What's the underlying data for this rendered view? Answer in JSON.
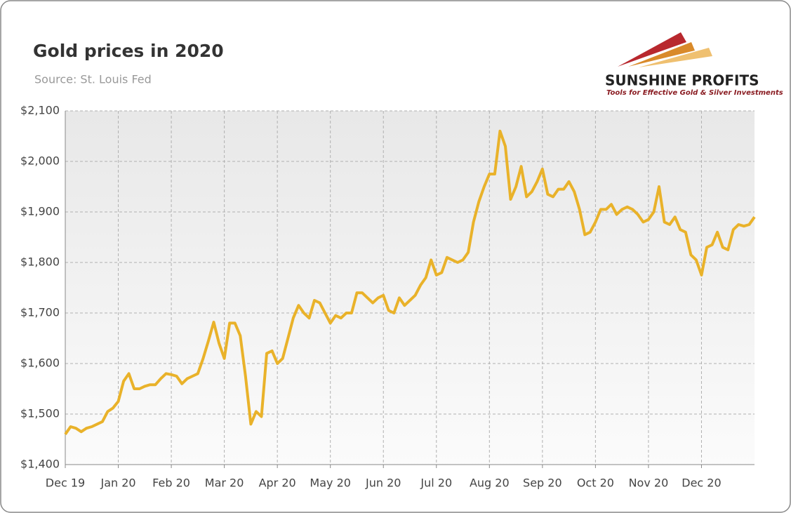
{
  "logo": {
    "name": "SUNSHINE PROFITS",
    "tagline": "Tools for Effective Gold & Silver Investments"
  },
  "chart_data": {
    "type": "line",
    "title": "Gold prices in 2020",
    "subtitle": "Source: St. Louis Fed",
    "categories": [
      "Dec 19",
      null,
      null,
      null,
      null,
      null,
      null,
      null,
      null,
      null,
      "Jan 20",
      null,
      null,
      null,
      null,
      null,
      null,
      null,
      null,
      null,
      "Feb 20",
      null,
      null,
      null,
      null,
      null,
      null,
      null,
      null,
      null,
      "Mar 20",
      null,
      null,
      null,
      null,
      null,
      null,
      null,
      null,
      null,
      "Apr 20",
      null,
      null,
      null,
      null,
      null,
      null,
      null,
      null,
      null,
      "May 20",
      null,
      null,
      null,
      null,
      null,
      null,
      null,
      null,
      null,
      "Jun 20",
      null,
      null,
      null,
      null,
      null,
      null,
      null,
      null,
      null,
      "Jul 20",
      null,
      null,
      null,
      null,
      null,
      null,
      null,
      null,
      null,
      "Aug 20",
      null,
      null,
      null,
      null,
      null,
      null,
      null,
      null,
      null,
      "Sep 20",
      null,
      null,
      null,
      null,
      null,
      null,
      null,
      null,
      null,
      "Oct 20",
      null,
      null,
      null,
      null,
      null,
      null,
      null,
      null,
      null,
      "Nov 20",
      null,
      null,
      null,
      null,
      null,
      null,
      null,
      null,
      null,
      "Dec 20",
      null,
      null,
      null,
      null,
      null,
      null,
      null,
      null,
      null,
      null
    ],
    "values": [
      1460,
      1475,
      1472,
      1465,
      1472,
      1475,
      1480,
      1485,
      1505,
      1512,
      1525,
      1565,
      1580,
      1550,
      1550,
      1555,
      1558,
      1558,
      1570,
      1580,
      1578,
      1575,
      1560,
      1570,
      1575,
      1580,
      1610,
      1645,
      1682,
      1640,
      1610,
      1680,
      1680,
      1655,
      1575,
      1480,
      1505,
      1495,
      1620,
      1625,
      1600,
      1610,
      1650,
      1690,
      1715,
      1700,
      1690,
      1725,
      1720,
      1700,
      1680,
      1695,
      1690,
      1700,
      1700,
      1740,
      1740,
      1730,
      1720,
      1730,
      1735,
      1705,
      1700,
      1730,
      1715,
      1725,
      1735,
      1755,
      1770,
      1805,
      1775,
      1780,
      1810,
      1805,
      1800,
      1805,
      1820,
      1880,
      1920,
      1950,
      1975,
      1975,
      2060,
      2030,
      1925,
      1950,
      1990,
      1930,
      1940,
      1960,
      1985,
      1935,
      1930,
      1945,
      1945,
      1960,
      1940,
      1905,
      1855,
      1860,
      1880,
      1905,
      1905,
      1915,
      1895,
      1905,
      1910,
      1905,
      1895,
      1880,
      1885,
      1900,
      1950,
      1880,
      1875,
      1890,
      1865,
      1860,
      1815,
      1805,
      1775,
      1830,
      1835,
      1860,
      1830,
      1825,
      1865,
      1875,
      1872,
      1875,
      1890
    ],
    "color": "#e9b22a",
    "ylim": [
      1400,
      2100
    ],
    "yticks": [
      {
        "value": 1400,
        "label": "$1,400"
      },
      {
        "value": 1500,
        "label": "$1,500"
      },
      {
        "value": 1600,
        "label": "$1,600"
      },
      {
        "value": 1700,
        "label": "$1,700"
      },
      {
        "value": 1800,
        "label": "$1,800"
      },
      {
        "value": 1900,
        "label": "$1,900"
      },
      {
        "value": 2000,
        "label": "$2,000"
      },
      {
        "value": 2100,
        "label": "$2,100"
      }
    ],
    "grid": true
  }
}
